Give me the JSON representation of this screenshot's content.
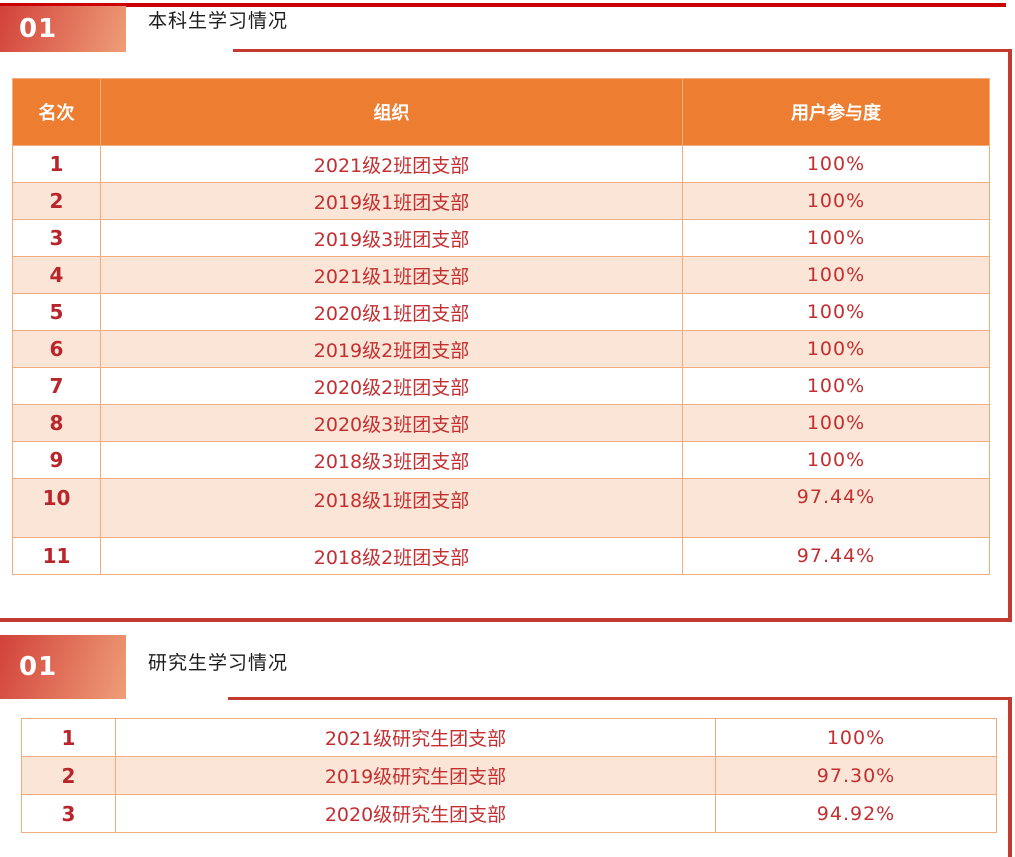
{
  "colors": {
    "header-bg": "#ED7D31",
    "row-alt-bg": "#FBE5D6",
    "grid-border": "#F1AD7D",
    "header-divider": "#F8CFA9",
    "accent-line": "#C23A30",
    "top-line": "#CB0000",
    "badge-g1": "#D2413A",
    "badge-g2": "#EF9E78",
    "rank-text": "#B8262C",
    "cell-text": "#C32F31",
    "header-text": "#FFFFFF",
    "title-text": "#1C1C1C"
  },
  "sections": [
    {
      "badge": "01",
      "title": "本科生学习情况",
      "table": {
        "headers": [
          "名次",
          "组织",
          "用户参与度"
        ],
        "rows": [
          {
            "rank": "1",
            "org": "2021级2班团支部",
            "participation": "100%"
          },
          {
            "rank": "2",
            "org": "2019级1班团支部",
            "participation": "100%"
          },
          {
            "rank": "3",
            "org": "2019级3班团支部",
            "participation": "100%"
          },
          {
            "rank": "4",
            "org": "2021级1班团支部",
            "participation": "100%"
          },
          {
            "rank": "5",
            "org": "2020级1班团支部",
            "participation": "100%"
          },
          {
            "rank": "6",
            "org": "2019级2班团支部",
            "participation": "100%"
          },
          {
            "rank": "7",
            "org": "2020级2班团支部",
            "participation": "100%"
          },
          {
            "rank": "8",
            "org": "2020级3班团支部",
            "participation": "100%"
          },
          {
            "rank": "9",
            "org": "2018级3班团支部",
            "participation": "100%"
          },
          {
            "rank": "10",
            "org": "2018级1班团支部",
            "participation": "97.44%"
          },
          {
            "rank": "11",
            "org": "2018级2班团支部",
            "participation": "97.44%"
          }
        ]
      }
    },
    {
      "badge": "01",
      "title": "研究生学习情况",
      "table": {
        "headers": [],
        "rows": [
          {
            "rank": "1",
            "org": "2021级研究生团支部",
            "participation": "100%"
          },
          {
            "rank": "2",
            "org": "2019级研究生团支部",
            "participation": "97.30%"
          },
          {
            "rank": "3",
            "org": "2020级研究生团支部",
            "participation": "94.92%"
          }
        ]
      }
    }
  ]
}
